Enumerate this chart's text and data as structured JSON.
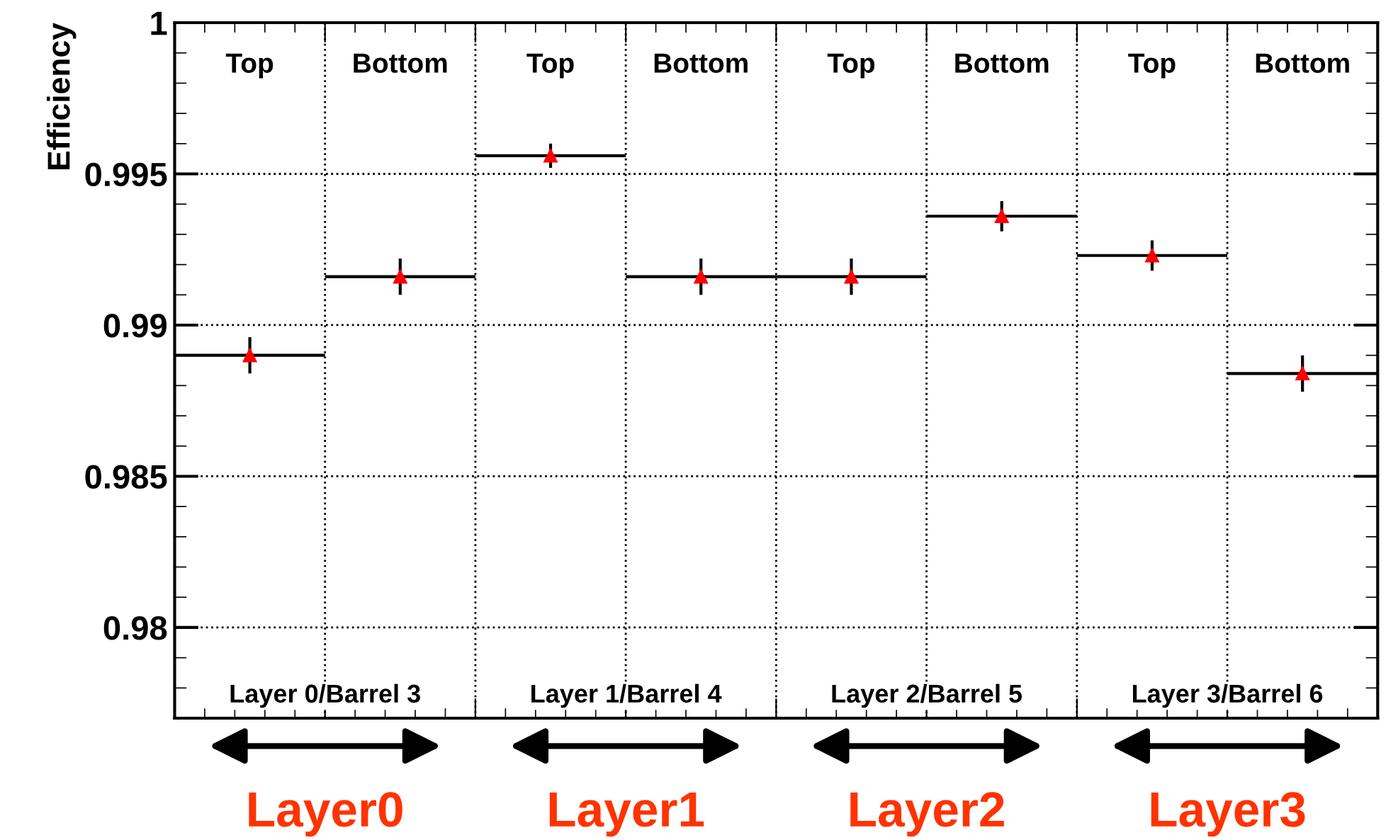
{
  "chart_data": {
    "type": "step",
    "ylabel": "Efficiency",
    "categories": [
      "Top",
      "Bottom",
      "Top",
      "Bottom",
      "Top",
      "Bottom",
      "Top",
      "Bottom"
    ],
    "series": [
      {
        "color": "#ff0000",
        "values": [
          0.989,
          0.9916,
          0.9956,
          0.9916,
          0.9916,
          0.9936,
          0.9923,
          0.9884
        ],
        "errors": [
          0.0006,
          0.0006,
          0.0004,
          0.0006,
          0.0006,
          0.0005,
          0.0005,
          0.0006
        ]
      }
    ],
    "ylim": [
      0.977,
      1
    ],
    "yticks": [
      0.98,
      0.985,
      0.99,
      0.995,
      1
    ],
    "grid": true,
    "marker": "triangle",
    "annotations": [
      "Layer 0/Barrel 3",
      "Layer 1/Barrel 4",
      "Layer 2/Barrel 5",
      "Layer 3/Barrel 6",
      "Layer0",
      "Layer1",
      "Layer2",
      "Layer3"
    ]
  }
}
